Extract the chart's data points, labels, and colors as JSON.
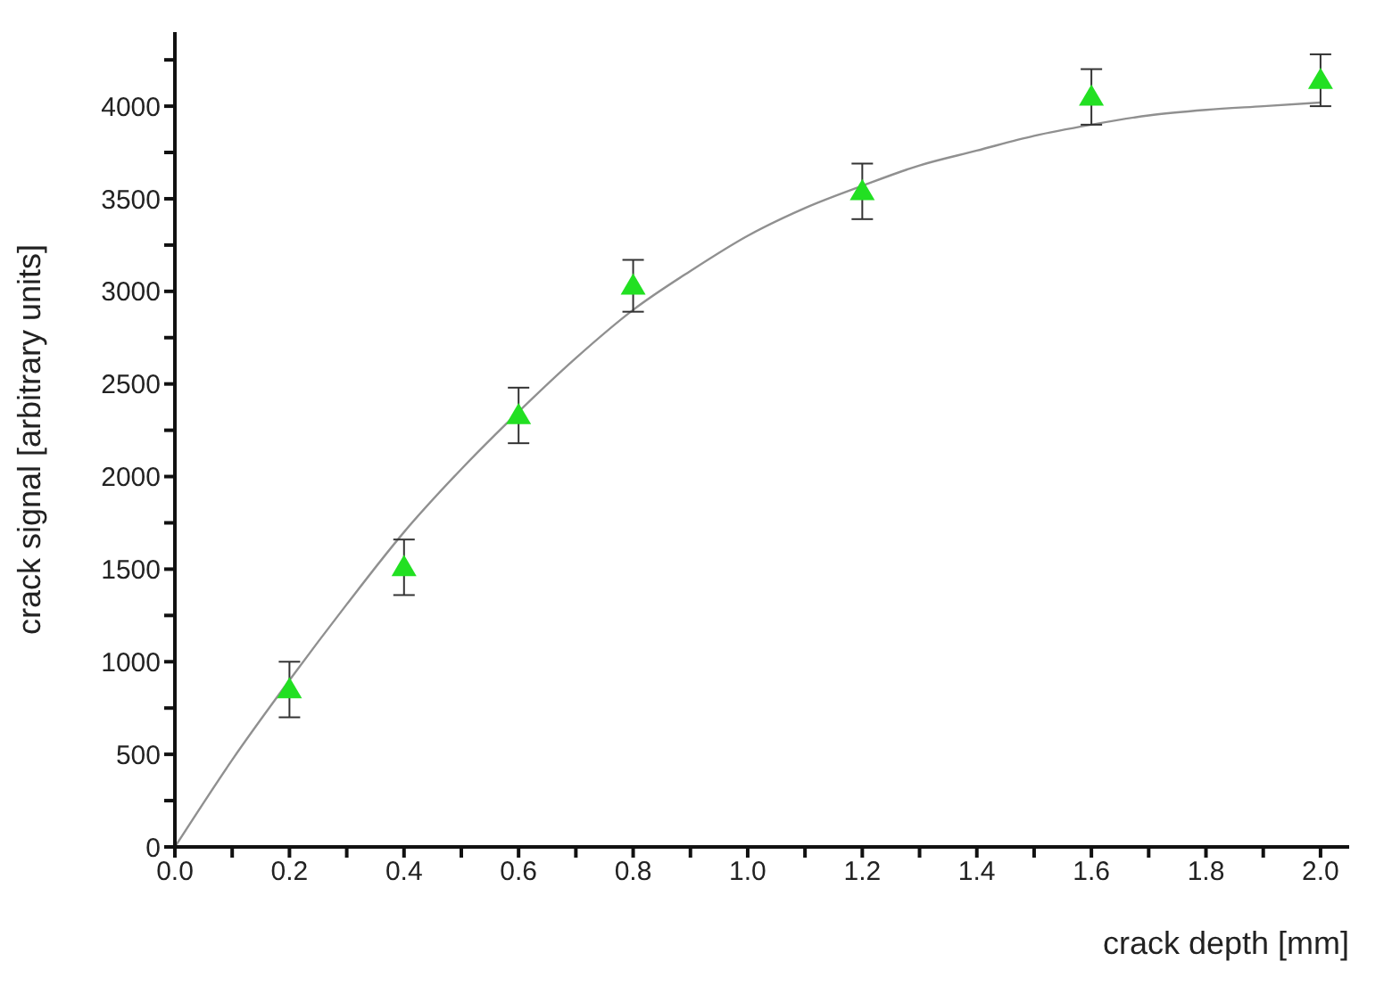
{
  "chart_data": {
    "type": "scatter",
    "xlabel": "crack depth [mm]",
    "ylabel": "crack signal [arbitrary units]",
    "xlim": [
      0,
      2.05
    ],
    "ylim": [
      0,
      4400
    ],
    "xticks": [
      {
        "value": 0,
        "label": "0.0"
      },
      {
        "value": 0.1,
        "label": null
      },
      {
        "value": 0.2,
        "label": "0.2"
      },
      {
        "value": 0.3,
        "label": null
      },
      {
        "value": 0.4,
        "label": "0.4"
      },
      {
        "value": 0.5,
        "label": null
      },
      {
        "value": 0.6,
        "label": "0.6"
      },
      {
        "value": 0.7,
        "label": null
      },
      {
        "value": 0.8,
        "label": "0.8"
      },
      {
        "value": 0.9,
        "label": null
      },
      {
        "value": 1.0,
        "label": "1.0"
      },
      {
        "value": 1.1,
        "label": null
      },
      {
        "value": 1.2,
        "label": "1.2"
      },
      {
        "value": 1.3,
        "label": null
      },
      {
        "value": 1.4,
        "label": "1.4"
      },
      {
        "value": 1.5,
        "label": null
      },
      {
        "value": 1.6,
        "label": "1.6"
      },
      {
        "value": 1.7,
        "label": null
      },
      {
        "value": 1.8,
        "label": "1.8"
      },
      {
        "value": 1.9,
        "label": null
      },
      {
        "value": 2.0,
        "label": "2.0"
      }
    ],
    "yticks": [
      0,
      {
        "value": 250,
        "label": null
      },
      500,
      {
        "value": 750,
        "label": null
      },
      1000,
      {
        "value": 1250,
        "label": null
      },
      1500,
      {
        "value": 1750,
        "label": null
      },
      2000,
      {
        "value": 2250,
        "label": null
      },
      2500,
      {
        "value": 2750,
        "label": null
      },
      3000,
      {
        "value": 3250,
        "label": null
      },
      3500,
      {
        "value": 3750,
        "label": null
      },
      4000,
      {
        "value": 4250,
        "label": null
      }
    ],
    "series": [
      {
        "type": "line",
        "color": "#909090",
        "marker": "none",
        "line_style": "solid",
        "x": [
          0,
          0.1,
          0.2,
          0.3,
          0.4,
          0.5,
          0.6,
          0.7,
          0.8,
          0.9,
          1.0,
          1.1,
          1.2,
          1.3,
          1.4,
          1.5,
          1.6,
          1.7,
          1.8,
          1.9,
          2.0
        ],
        "values": [
          0,
          470,
          900,
          1310,
          1700,
          2040,
          2350,
          2640,
          2900,
          3110,
          3300,
          3450,
          3570,
          3680,
          3760,
          3840,
          3900,
          3950,
          3980,
          4000,
          4020
        ]
      },
      {
        "color": "#22e022",
        "marker": "triangle",
        "x": [
          0.2,
          0.4,
          0.6,
          0.8,
          1.2,
          1.6,
          2.0
        ],
        "values": [
          850,
          1510,
          2330,
          3030,
          3540,
          4050,
          4140
        ],
        "errors": [
          150,
          150,
          150,
          140,
          150,
          150,
          140
        ]
      }
    ]
  }
}
